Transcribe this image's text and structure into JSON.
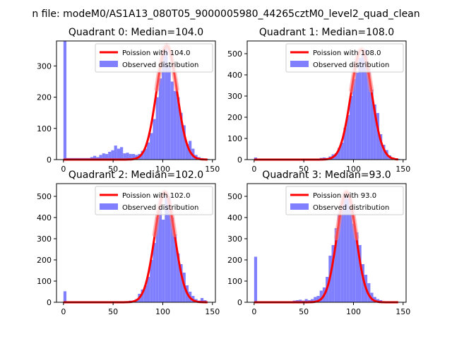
{
  "suptitle": "n file: modeM0/AS1A13_080T05_9000005980_44265cztM0_level2_quad_clean",
  "colors": {
    "hist": "#8080ff",
    "fit": "#ff0000",
    "fitAlpha": "#ff8080"
  },
  "chart_data": [
    {
      "type": "bar",
      "title": "Quadrant 0: Median=104.0",
      "median": 104.0,
      "xlim": [
        -7,
        153
      ],
      "ylim": [
        0,
        380
      ],
      "xticks": [
        0,
        50,
        100,
        150
      ],
      "yticks": [
        0,
        100,
        200,
        300
      ],
      "legend": [
        "Poission with 104.0",
        "Observed distribution"
      ],
      "bins": [
        [
          0,
          380
        ],
        [
          3,
          5
        ],
        [
          6,
          5
        ],
        [
          9,
          5
        ],
        [
          12,
          5
        ],
        [
          15,
          5
        ],
        [
          18,
          5
        ],
        [
          21,
          5
        ],
        [
          24,
          5
        ],
        [
          27,
          8
        ],
        [
          30,
          12
        ],
        [
          33,
          8
        ],
        [
          36,
          15
        ],
        [
          39,
          20
        ],
        [
          42,
          18
        ],
        [
          45,
          25
        ],
        [
          48,
          30
        ],
        [
          51,
          45
        ],
        [
          54,
          35
        ],
        [
          57,
          40
        ],
        [
          60,
          20
        ],
        [
          63,
          22
        ],
        [
          66,
          18
        ],
        [
          69,
          18
        ],
        [
          72,
          15
        ],
        [
          75,
          18
        ],
        [
          78,
          28
        ],
        [
          81,
          35
        ],
        [
          84,
          55
        ],
        [
          87,
          85
        ],
        [
          90,
          130
        ],
        [
          93,
          200
        ],
        [
          96,
          260
        ],
        [
          99,
          350
        ],
        [
          102,
          365
        ],
        [
          105,
          300
        ],
        [
          108,
          250
        ],
        [
          111,
          220
        ],
        [
          114,
          200
        ],
        [
          117,
          150
        ],
        [
          120,
          110
        ],
        [
          123,
          50
        ],
        [
          126,
          60
        ],
        [
          129,
          35
        ],
        [
          132,
          15
        ],
        [
          135,
          8
        ],
        [
          138,
          5
        ],
        [
          141,
          3
        ],
        [
          144,
          2
        ]
      ]
    },
    {
      "type": "bar",
      "title": "Quadrant 1: Median=108.0",
      "median": 108.0,
      "xlim": [
        -7,
        153
      ],
      "ylim": [
        0,
        560
      ],
      "xticks": [
        0,
        50,
        100,
        150
      ],
      "yticks": [
        0,
        100,
        200,
        300,
        400,
        500
      ],
      "legend": [
        "Poission with 108.0",
        "Observed distribution"
      ],
      "bins": [
        [
          0,
          10
        ],
        [
          3,
          5
        ],
        [
          6,
          5
        ],
        [
          9,
          5
        ],
        [
          12,
          3
        ],
        [
          15,
          3
        ],
        [
          18,
          3
        ],
        [
          21,
          3
        ],
        [
          24,
          3
        ],
        [
          27,
          3
        ],
        [
          30,
          3
        ],
        [
          33,
          3
        ],
        [
          36,
          3
        ],
        [
          39,
          3
        ],
        [
          42,
          3
        ],
        [
          45,
          3
        ],
        [
          48,
          3
        ],
        [
          51,
          3
        ],
        [
          54,
          3
        ],
        [
          57,
          5
        ],
        [
          60,
          3
        ],
        [
          63,
          5
        ],
        [
          66,
          8
        ],
        [
          69,
          10
        ],
        [
          72,
          8
        ],
        [
          75,
          15
        ],
        [
          78,
          25
        ],
        [
          81,
          30
        ],
        [
          84,
          55
        ],
        [
          87,
          80
        ],
        [
          90,
          150
        ],
        [
          93,
          210
        ],
        [
          96,
          300
        ],
        [
          99,
          380
        ],
        [
          102,
          410
        ],
        [
          105,
          480
        ],
        [
          108,
          500
        ],
        [
          111,
          520
        ],
        [
          114,
          430
        ],
        [
          117,
          330
        ],
        [
          120,
          260
        ],
        [
          123,
          220
        ],
        [
          126,
          120
        ],
        [
          129,
          70
        ],
        [
          132,
          45
        ],
        [
          135,
          20
        ],
        [
          138,
          10
        ],
        [
          141,
          5
        ],
        [
          144,
          3
        ]
      ]
    },
    {
      "type": "bar",
      "title": "Quadrant 2: Median=102.0",
      "median": 102.0,
      "xlim": [
        -7,
        153
      ],
      "ylim": [
        0,
        560
      ],
      "xticks": [
        0,
        50,
        100,
        150
      ],
      "yticks": [
        0,
        100,
        200,
        300,
        400,
        500
      ],
      "legend": [
        "Poission with 102.0",
        "Observed distribution"
      ],
      "bins": [
        [
          0,
          52
        ],
        [
          3,
          3
        ],
        [
          6,
          3
        ],
        [
          9,
          3
        ],
        [
          12,
          3
        ],
        [
          15,
          3
        ],
        [
          18,
          3
        ],
        [
          21,
          3
        ],
        [
          24,
          3
        ],
        [
          27,
          3
        ],
        [
          30,
          3
        ],
        [
          33,
          3
        ],
        [
          36,
          3
        ],
        [
          39,
          3
        ],
        [
          42,
          3
        ],
        [
          45,
          3
        ],
        [
          48,
          3
        ],
        [
          51,
          3
        ],
        [
          54,
          3
        ],
        [
          57,
          3
        ],
        [
          60,
          5
        ],
        [
          63,
          5
        ],
        [
          66,
          8
        ],
        [
          69,
          8
        ],
        [
          72,
          15
        ],
        [
          75,
          40
        ],
        [
          78,
          60
        ],
        [
          81,
          80
        ],
        [
          84,
          120
        ],
        [
          87,
          200
        ],
        [
          90,
          280
        ],
        [
          93,
          400
        ],
        [
          96,
          450
        ],
        [
          99,
          390
        ],
        [
          102,
          520
        ],
        [
          105,
          500
        ],
        [
          108,
          400
        ],
        [
          111,
          320
        ],
        [
          114,
          230
        ],
        [
          117,
          180
        ],
        [
          120,
          140
        ],
        [
          123,
          80
        ],
        [
          126,
          50
        ],
        [
          129,
          30
        ],
        [
          132,
          15
        ],
        [
          135,
          8
        ],
        [
          138,
          20
        ],
        [
          141,
          10
        ],
        [
          144,
          2
        ]
      ]
    },
    {
      "type": "bar",
      "title": "Quadrant 3: Median=93.0",
      "median": 93.0,
      "xlim": [
        -7,
        153
      ],
      "ylim": [
        0,
        560
      ],
      "xticks": [
        0,
        50,
        100,
        150
      ],
      "yticks": [
        0,
        100,
        200,
        300,
        400,
        500
      ],
      "legend": [
        "Poission with 93.0",
        "Observed distribution"
      ],
      "bins": [
        [
          0,
          215
        ],
        [
          3,
          3
        ],
        [
          6,
          3
        ],
        [
          9,
          3
        ],
        [
          12,
          3
        ],
        [
          15,
          3
        ],
        [
          18,
          3
        ],
        [
          21,
          3
        ],
        [
          24,
          3
        ],
        [
          27,
          3
        ],
        [
          30,
          3
        ],
        [
          33,
          3
        ],
        [
          36,
          3
        ],
        [
          39,
          8
        ],
        [
          42,
          10
        ],
        [
          45,
          12
        ],
        [
          48,
          8
        ],
        [
          51,
          15
        ],
        [
          54,
          10
        ],
        [
          57,
          15
        ],
        [
          60,
          25
        ],
        [
          63,
          30
        ],
        [
          66,
          55
        ],
        [
          69,
          70
        ],
        [
          72,
          120
        ],
        [
          75,
          220
        ],
        [
          78,
          270
        ],
        [
          81,
          350
        ],
        [
          84,
          420
        ],
        [
          87,
          470
        ],
        [
          90,
          500
        ],
        [
          93,
          490
        ],
        [
          96,
          440
        ],
        [
          99,
          370
        ],
        [
          102,
          330
        ],
        [
          105,
          270
        ],
        [
          108,
          180
        ],
        [
          111,
          130
        ],
        [
          114,
          90
        ],
        [
          117,
          45
        ],
        [
          120,
          25
        ],
        [
          123,
          15
        ],
        [
          126,
          10
        ],
        [
          129,
          5
        ],
        [
          132,
          3
        ],
        [
          135,
          2
        ],
        [
          138,
          2
        ],
        [
          141,
          2
        ],
        [
          144,
          2
        ]
      ]
    }
  ]
}
